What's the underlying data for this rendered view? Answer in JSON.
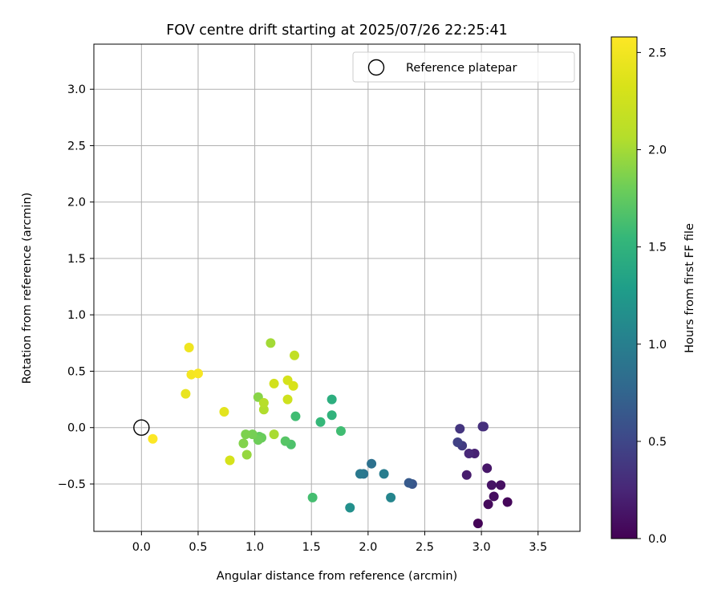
{
  "chart_data": {
    "type": "scatter",
    "title": "FOV centre drift starting at 2025/07/26 22:25:41",
    "xlabel": "Angular distance from reference (arcmin)",
    "ylabel": "Rotation from reference (arcmin)",
    "xlim": [
      -0.42,
      3.87
    ],
    "ylim": [
      -0.92,
      3.4
    ],
    "x_ticks": [
      "0.0",
      "0.5",
      "1.0",
      "1.5",
      "2.0",
      "2.5",
      "3.0",
      "3.5"
    ],
    "y_ticks": [
      "−0.5",
      "0.0",
      "0.5",
      "1.0",
      "1.5",
      "2.0",
      "2.5",
      "3.0"
    ],
    "grid": true,
    "legend": {
      "placement": "top-right",
      "entries": [
        "Reference platepar"
      ]
    },
    "reference_point": {
      "x": 0.0,
      "y": 0.0,
      "marker": "open-circle"
    },
    "colorbar": {
      "label": "Hours from first FF file",
      "colormap": "viridis",
      "range": [
        0.0,
        2.58
      ],
      "ticks": [
        "0.0",
        "0.5",
        "1.0",
        "1.5",
        "2.0",
        "2.5"
      ]
    },
    "series": [
      {
        "points": [
          {
            "x": 2.97,
            "y": -0.85,
            "c": 0.02
          },
          {
            "x": 3.23,
            "y": -0.66,
            "c": 0.04
          },
          {
            "x": 3.06,
            "y": -0.68,
            "c": 0.06
          },
          {
            "x": 3.11,
            "y": -0.61,
            "c": 0.08
          },
          {
            "x": 3.17,
            "y": -0.51,
            "c": 0.1
          },
          {
            "x": 3.09,
            "y": -0.51,
            "c": 0.12
          },
          {
            "x": 3.05,
            "y": -0.36,
            "c": 0.14
          },
          {
            "x": 2.87,
            "y": -0.42,
            "c": 0.18
          },
          {
            "x": 2.94,
            "y": -0.23,
            "c": 0.22
          },
          {
            "x": 2.89,
            "y": -0.23,
            "c": 0.26
          },
          {
            "x": 3.02,
            "y": 0.01,
            "c": 0.3
          },
          {
            "x": 3.01,
            "y": 0.01,
            "c": 0.32
          },
          {
            "x": 2.81,
            "y": -0.01,
            "c": 0.36
          },
          {
            "x": 2.83,
            "y": -0.16,
            "c": 0.4
          },
          {
            "x": 2.79,
            "y": -0.13,
            "c": 0.45
          },
          {
            "x": 2.39,
            "y": -0.5,
            "c": 0.62
          },
          {
            "x": 2.36,
            "y": -0.49,
            "c": 0.66
          },
          {
            "x": 2.03,
            "y": -0.32,
            "c": 0.86
          },
          {
            "x": 1.96,
            "y": -0.41,
            "c": 0.9
          },
          {
            "x": 1.93,
            "y": -0.41,
            "c": 0.94
          },
          {
            "x": 2.14,
            "y": -0.41,
            "c": 0.98
          },
          {
            "x": 2.2,
            "y": -0.62,
            "c": 1.06
          },
          {
            "x": 1.84,
            "y": -0.71,
            "c": 1.16
          },
          {
            "x": 1.68,
            "y": 0.25,
            "c": 1.45
          },
          {
            "x": 1.68,
            "y": 0.11,
            "c": 1.5
          },
          {
            "x": 1.58,
            "y": 0.05,
            "c": 1.55
          },
          {
            "x": 1.76,
            "y": -0.03,
            "c": 1.6
          },
          {
            "x": 1.51,
            "y": -0.62,
            "c": 1.62
          },
          {
            "x": 1.36,
            "y": 0.1,
            "c": 1.6
          },
          {
            "x": 1.32,
            "y": -0.15,
            "c": 1.66
          },
          {
            "x": 1.27,
            "y": -0.12,
            "c": 1.7
          },
          {
            "x": 1.04,
            "y": -0.08,
            "c": 1.75
          },
          {
            "x": 1.06,
            "y": -0.09,
            "c": 1.78
          },
          {
            "x": 1.03,
            "y": -0.11,
            "c": 1.8
          },
          {
            "x": 0.98,
            "y": -0.06,
            "c": 1.83
          },
          {
            "x": 0.92,
            "y": -0.06,
            "c": 1.86
          },
          {
            "x": 0.9,
            "y": -0.14,
            "c": 1.88
          },
          {
            "x": 1.03,
            "y": 0.27,
            "c": 1.9
          },
          {
            "x": 0.93,
            "y": -0.24,
            "c": 1.95
          },
          {
            "x": 1.17,
            "y": -0.06,
            "c": 2.02
          },
          {
            "x": 1.08,
            "y": 0.16,
            "c": 2.05
          },
          {
            "x": 1.08,
            "y": 0.22,
            "c": 2.08
          },
          {
            "x": 1.14,
            "y": 0.75,
            "c": 2.0
          },
          {
            "x": 1.35,
            "y": 0.64,
            "c": 2.15
          },
          {
            "x": 1.29,
            "y": 0.25,
            "c": 2.25
          },
          {
            "x": 1.17,
            "y": 0.39,
            "c": 2.28
          },
          {
            "x": 1.29,
            "y": 0.42,
            "c": 2.3
          },
          {
            "x": 1.34,
            "y": 0.37,
            "c": 2.32
          },
          {
            "x": 0.78,
            "y": -0.29,
            "c": 2.3
          },
          {
            "x": 0.73,
            "y": 0.14,
            "c": 2.4
          },
          {
            "x": 0.39,
            "y": 0.3,
            "c": 2.44
          },
          {
            "x": 0.42,
            "y": 0.71,
            "c": 2.48
          },
          {
            "x": 0.44,
            "y": 0.47,
            "c": 2.52
          },
          {
            "x": 0.5,
            "y": 0.48,
            "c": 2.54
          },
          {
            "x": 0.1,
            "y": -0.1,
            "c": 2.57
          }
        ]
      }
    ]
  }
}
